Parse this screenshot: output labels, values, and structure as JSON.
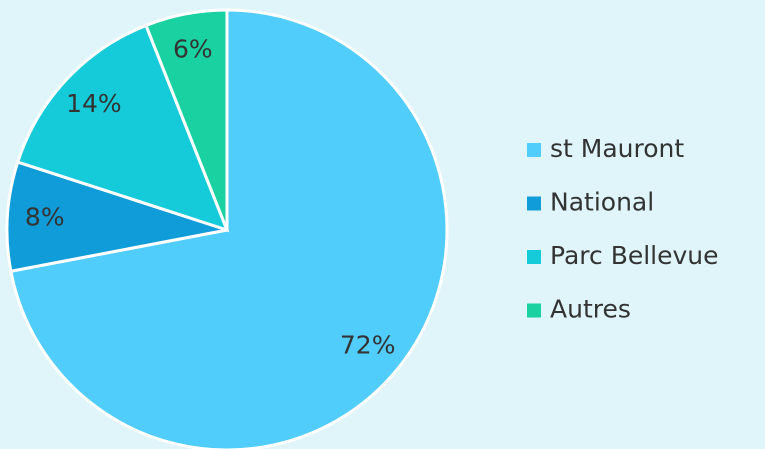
{
  "chart_data": {
    "type": "pie",
    "categories": [
      "st Mauront",
      "National",
      "Parc Bellevue",
      "Autres"
    ],
    "values": [
      72,
      8,
      14,
      6
    ],
    "value_labels": [
      "72%",
      "8%",
      "14%",
      "6%"
    ],
    "colors": [
      "#50cdfa",
      "#109cd8",
      "#16cbd9",
      "#19d1a1"
    ],
    "legend": "right"
  }
}
